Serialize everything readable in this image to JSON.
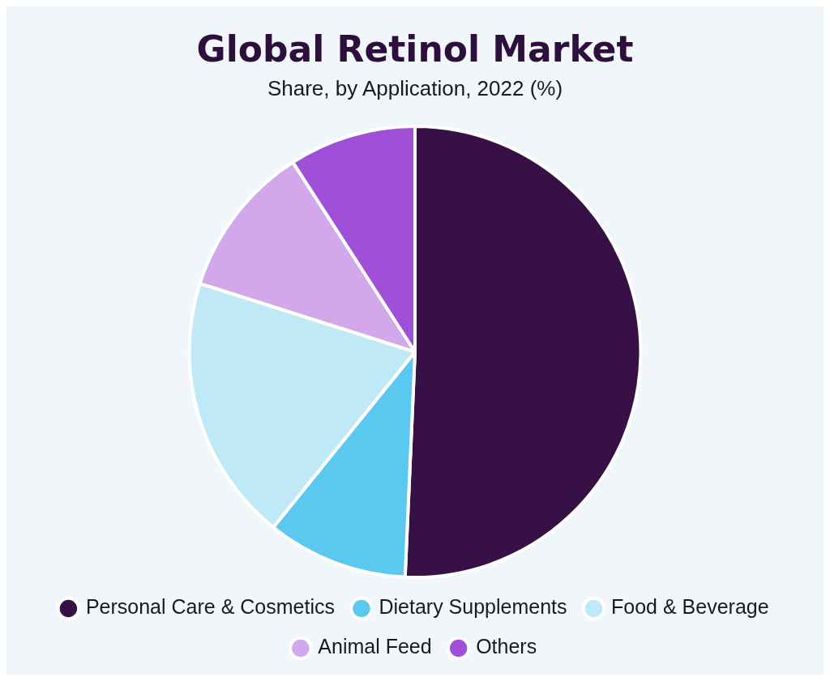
{
  "chart_data": {
    "type": "pie",
    "title": "Global Retinol Market",
    "subtitle": "Share, by Application, 2022 (%)",
    "categories": [
      "Personal Care & Cosmetics",
      "Dietary Supplements",
      "Food & Beverage",
      "Animal Feed",
      "Others"
    ],
    "values": [
      50.7,
      10.1,
      19.1,
      11.0,
      9.1
    ],
    "colors": [
      "#371145",
      "#5bc8ef",
      "#c0e9f8",
      "#d3a8ea",
      "#a04fd8"
    ],
    "legend": "bottom"
  }
}
